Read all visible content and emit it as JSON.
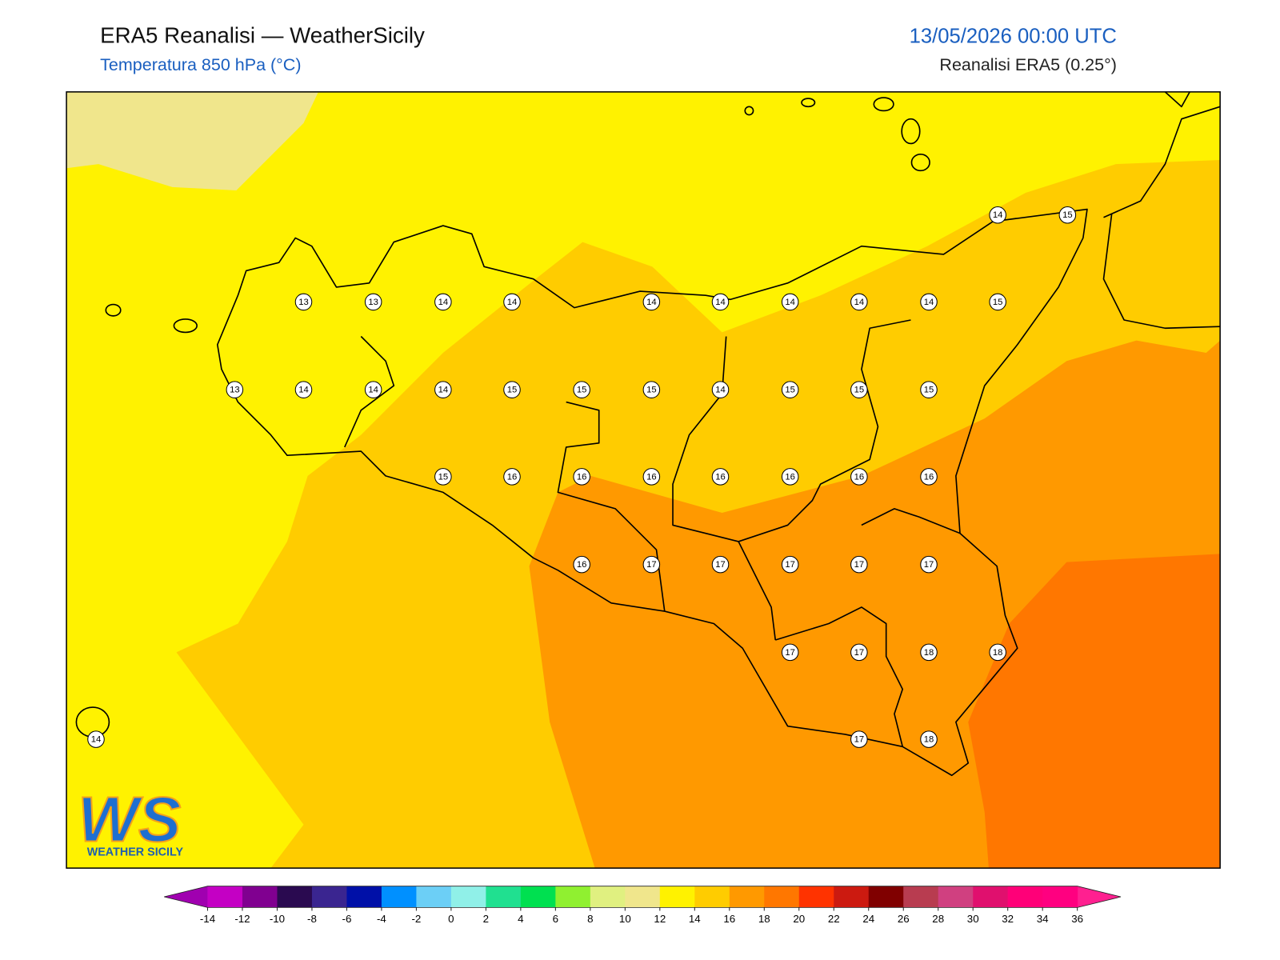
{
  "header": {
    "title": "ERA5 Reanalisi — WeatherSicily",
    "subtitle": "Temperatura 850 hPa (°C)",
    "date": "13/05/2026 00:00 UTC",
    "source": "Reanalisi ERA5 (0.25°)"
  },
  "stations": [
    14,
    15,
    13,
    13,
    14,
    14,
    14,
    14,
    14,
    14,
    14,
    15,
    13,
    14,
    14,
    14,
    15,
    15,
    15,
    14,
    15,
    15,
    15,
    15,
    16,
    16,
    16,
    16,
    16,
    16,
    16,
    16,
    17,
    17,
    17,
    17,
    17,
    17,
    17,
    18,
    18,
    14,
    17,
    18
  ],
  "colorbar": {
    "ticks": [
      -14,
      -12,
      -10,
      -8,
      -6,
      -4,
      -2,
      0,
      2,
      4,
      6,
      8,
      10,
      12,
      14,
      16,
      18,
      20,
      22,
      24,
      26,
      28,
      30,
      32,
      34,
      36
    ],
    "colors": [
      "#c400c4",
      "#800090",
      "#2a0a50",
      "#3a2590",
      "#0010a8",
      "#0090ff",
      "#6ccff6",
      "#90f0e8",
      "#20e090",
      "#00e050",
      "#90f030",
      "#e0f080",
      "#f0e68c",
      "#fff200",
      "#ffcc00",
      "#ff9900",
      "#ff7700",
      "#ff3300",
      "#cc1a10",
      "#800000",
      "#b83c50",
      "#d04080",
      "#e0106e",
      "#ff0078",
      "#ff0080"
    ],
    "under": "#a000b0",
    "over": "#ff2090"
  },
  "logo": {
    "mark": "WS",
    "name": "WEATHER SICILY"
  }
}
